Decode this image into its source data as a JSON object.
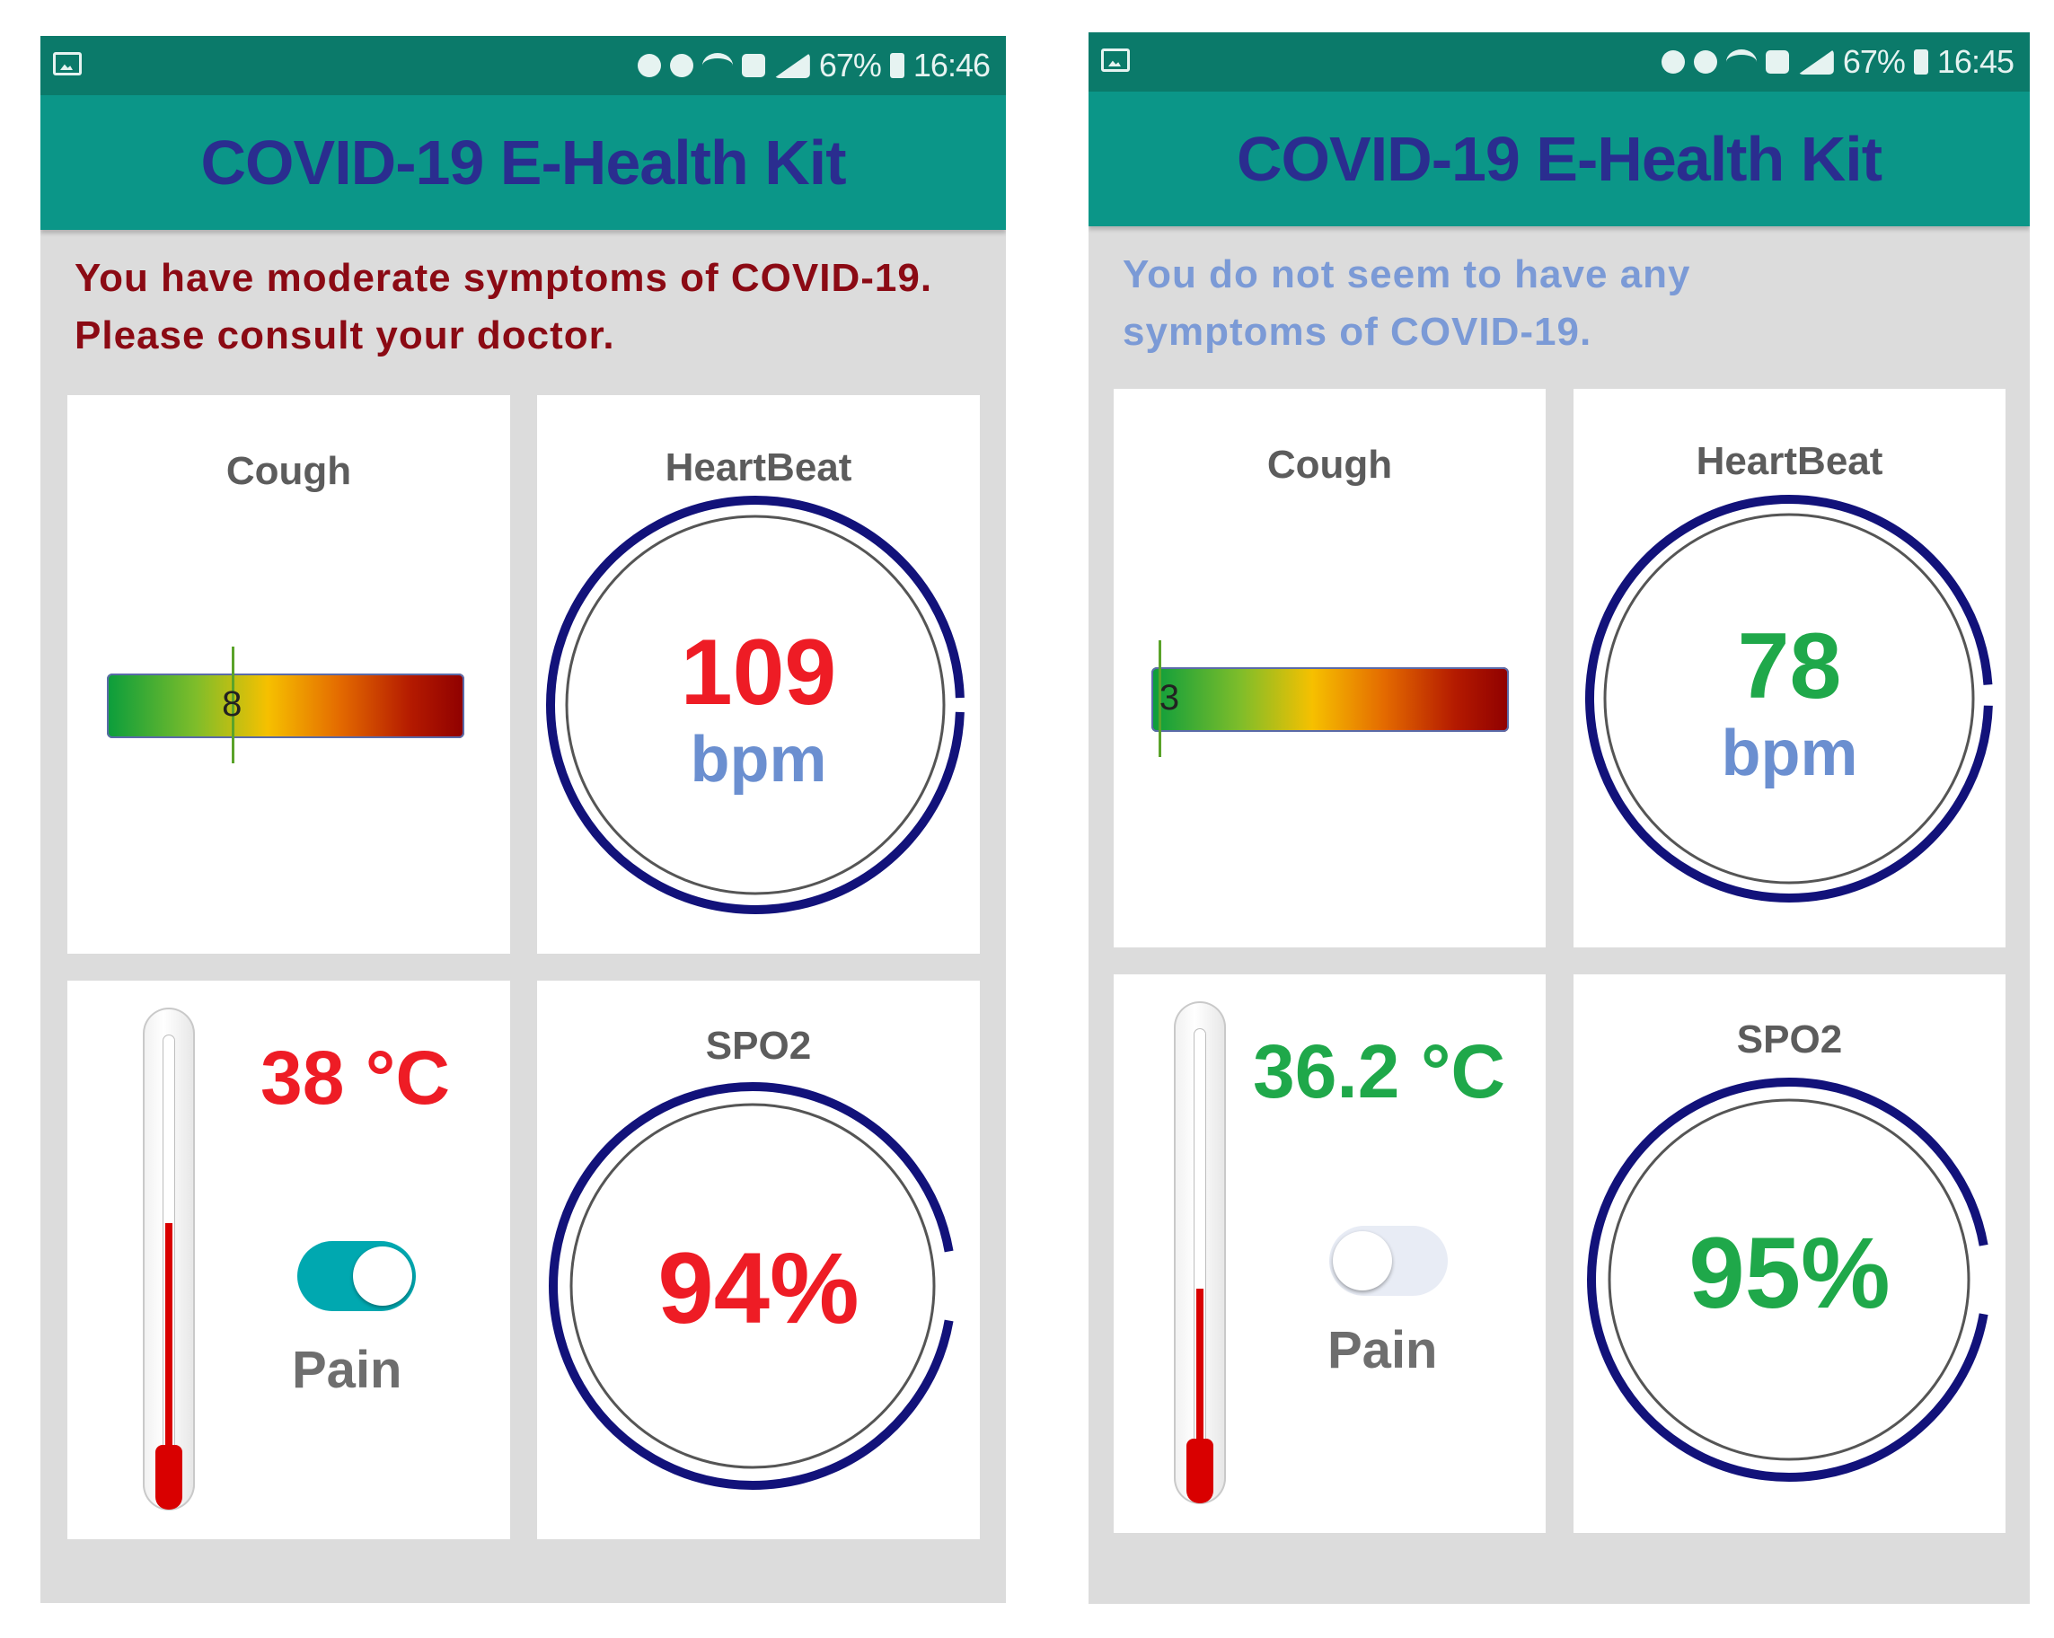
{
  "app": {
    "title": "COVID-19 E-Health Kit",
    "unit_bpm": "bpm",
    "temp_unit": "°C",
    "pain_label": "Pain"
  },
  "left_screen": {
    "status": {
      "battery": "67%",
      "time": "16:46"
    },
    "message": "You have moderate symptoms of COVID-19. Please consult your doctor.",
    "message_color": "#8b0a14",
    "cough": {
      "title": "Cough",
      "value": "8",
      "level": 0.35
    },
    "heartbeat": {
      "title": "HeartBeat",
      "value": "109",
      "color": "#ee1c25"
    },
    "temperature": {
      "value": "38",
      "color": "#ee1c25",
      "fill_level": 0.58
    },
    "pain": {
      "on": true
    },
    "spo2": {
      "title": "SPO2",
      "value": "94%",
      "color": "#ee1c25"
    }
  },
  "right_screen": {
    "status": {
      "battery": "67%",
      "time": "16:45"
    },
    "message": "You do not seem to have any symptoms of COVID-19.",
    "message_color": "#7b9ad6",
    "cough": {
      "title": "Cough",
      "value": "3",
      "level": 0.02
    },
    "heartbeat": {
      "title": "HeartBeat",
      "value": "78",
      "color": "#1fa84a"
    },
    "temperature": {
      "value": "36.2",
      "color": "#1fa84a",
      "fill_level": 0.42
    },
    "pain": {
      "on": false
    },
    "spo2": {
      "title": "SPO2",
      "value": "95%",
      "color": "#1fa84a"
    }
  },
  "colors": {
    "gauge_ring": "#12127a",
    "toggle_on": "#00a8b0",
    "toggle_off": "#e8ecf5"
  }
}
